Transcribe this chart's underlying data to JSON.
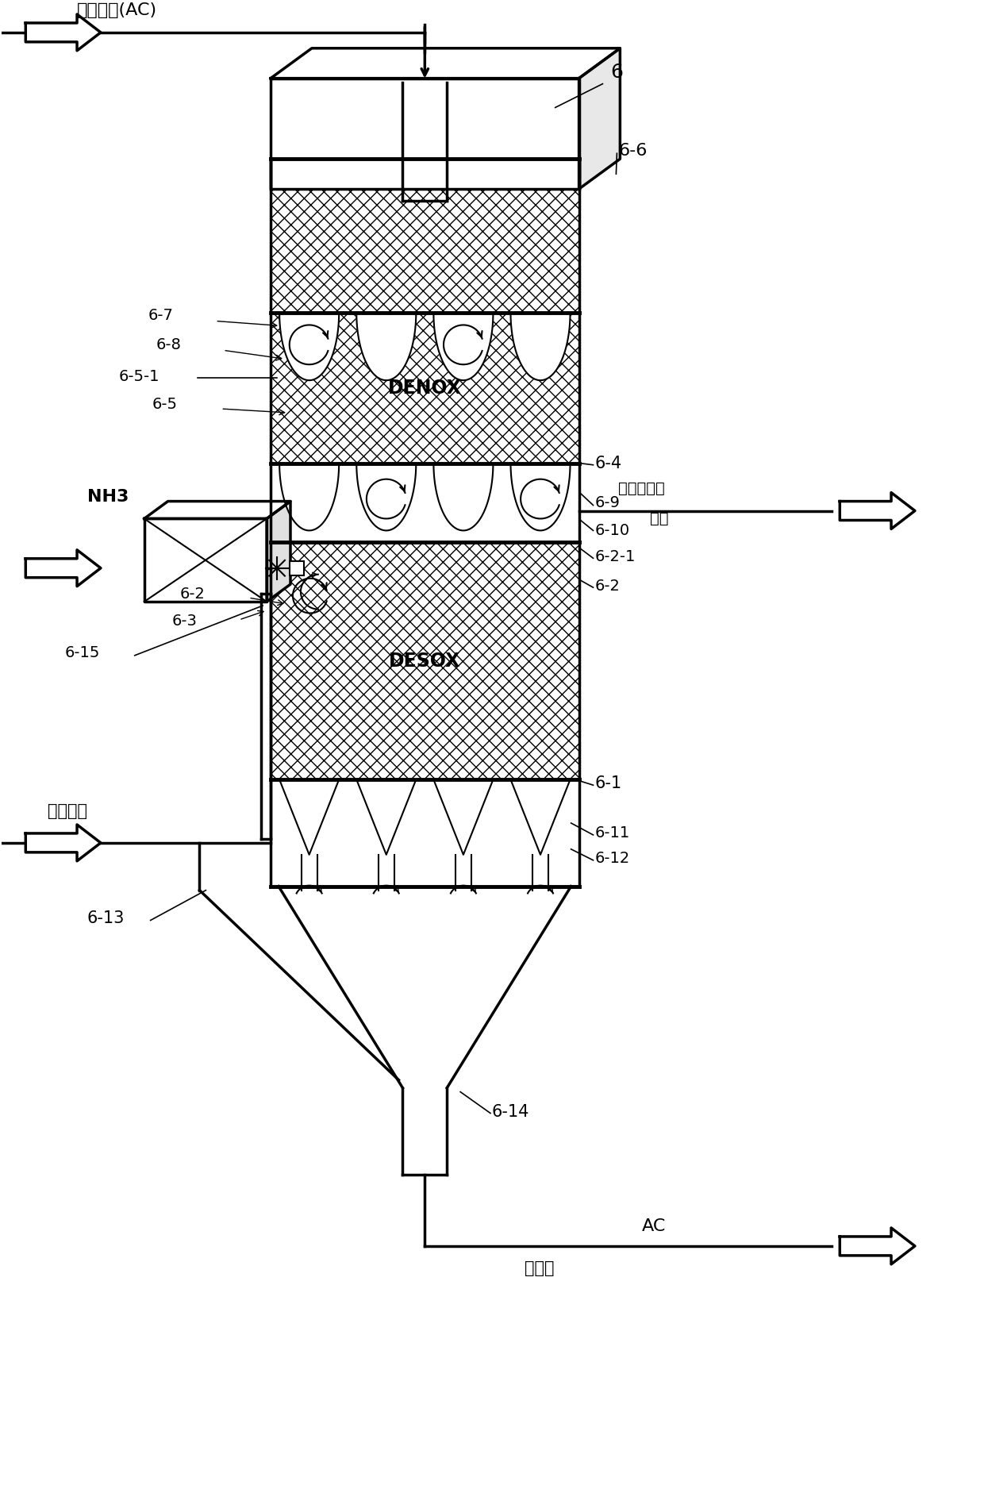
{
  "bg_color": "#ffffff",
  "lc": "#000000",
  "fig_w": 12.4,
  "fig_h": 19.05,
  "labels": {
    "top_label": "活性焦芳(AC)",
    "right_top": "被净化后的",
    "right_bot": "废气",
    "nh3": "NH3",
    "sintering": "烧结废气",
    "ac_out": "AC",
    "ac_sub": "负载的",
    "denox": "DENOX",
    "desox": "DESOX",
    "r6": "6",
    "r66": "6-6",
    "r67": "6-7",
    "r68": "6-8",
    "r651": "6-5-1",
    "r65": "6-5",
    "r64": "6-4",
    "r69": "6-9",
    "r610": "6-10",
    "r621": "6-2-1",
    "r62L": "6-2",
    "r62R": "6-2",
    "r63": "6-3",
    "r61": "6-1",
    "r611": "6-11",
    "r612": "6-12",
    "r613": "6-13",
    "r614": "6-14",
    "r615": "6-15"
  }
}
